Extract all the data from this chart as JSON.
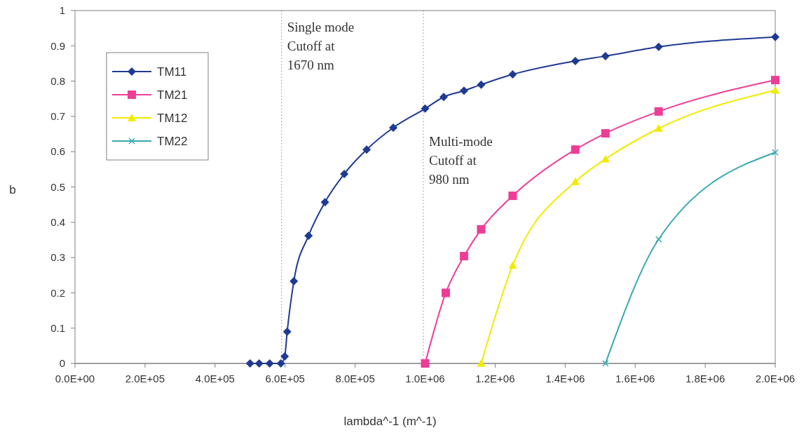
{
  "chart_data": {
    "type": "line",
    "xlabel": "lambda^-1 (m^-1)",
    "ylabel": "b",
    "xlim": [
      0,
      2000000
    ],
    "ylim": [
      0,
      1
    ],
    "xticks": [
      {
        "value": 0,
        "label": "0.0E+00"
      },
      {
        "value": 200000,
        "label": "2.0E+05"
      },
      {
        "value": 400000,
        "label": "4.0E+05"
      },
      {
        "value": 600000,
        "label": "6.0E+05"
      },
      {
        "value": 800000,
        "label": "8.0E+05"
      },
      {
        "value": 1000000,
        "label": "1.0E+06"
      },
      {
        "value": 1200000,
        "label": "1.2E+06"
      },
      {
        "value": 1400000,
        "label": "1.4E+06"
      },
      {
        "value": 1600000,
        "label": "1.6E+06"
      },
      {
        "value": 1800000,
        "label": "1.8E+06"
      },
      {
        "value": 2000000,
        "label": "2.0E+06"
      }
    ],
    "yticks": [
      0,
      0.1,
      0.2,
      0.3,
      0.4,
      0.5,
      0.6,
      0.7,
      0.8,
      0.9,
      1
    ],
    "grid": false,
    "legend": "top left",
    "line_style": "solid",
    "series": [
      {
        "name": "TM11",
        "color": "#1f3a93",
        "marker": "diamond",
        "x": [
          500000,
          526000,
          556000,
          588000,
          599000,
          606000,
          625000,
          667000,
          714000,
          769000,
          833000,
          909000,
          1000000,
          1053000,
          1111000,
          1160000,
          1250000,
          1429000,
          1515000,
          1667000,
          2000000
        ],
        "values": [
          0,
          0,
          0,
          0,
          0.02,
          0.09,
          0.233,
          0.362,
          0.457,
          0.537,
          0.606,
          0.668,
          0.722,
          0.755,
          0.773,
          0.79,
          0.819,
          0.857,
          0.871,
          0.897,
          0.925
        ]
      },
      {
        "name": "TM21",
        "color": "#ee3d96",
        "marker": "square",
        "x": [
          1000000,
          1059000,
          1111000,
          1160000,
          1250000,
          1429000,
          1515000,
          1667000,
          2000000
        ],
        "values": [
          0,
          0.2,
          0.304,
          0.38,
          0.475,
          0.606,
          0.652,
          0.714,
          0.803
        ]
      },
      {
        "name": "TM12",
        "color": "#f2ea00",
        "marker": "triangle",
        "x": [
          1160000,
          1250000,
          1429000,
          1515000,
          1667000,
          2000000
        ],
        "values": [
          0,
          0.278,
          0.515,
          0.579,
          0.666,
          0.774
        ]
      },
      {
        "name": "TM22",
        "color": "#3aa7b0",
        "marker": "cross",
        "x": [
          1515000,
          1667000,
          2000000
        ],
        "values": [
          0,
          0.352,
          0.598
        ]
      }
    ],
    "ref_lines": [
      {
        "axis": "x",
        "value": 590000,
        "color": "#888888",
        "line_style": "dotted"
      },
      {
        "axis": "x",
        "value": 995000,
        "color": "#888888",
        "line_style": "dotted"
      }
    ],
    "annotations": [
      "Single mode\nCutoff at\n1670 nm",
      "Multi-mode\nCutoff at\n980 nm"
    ]
  }
}
